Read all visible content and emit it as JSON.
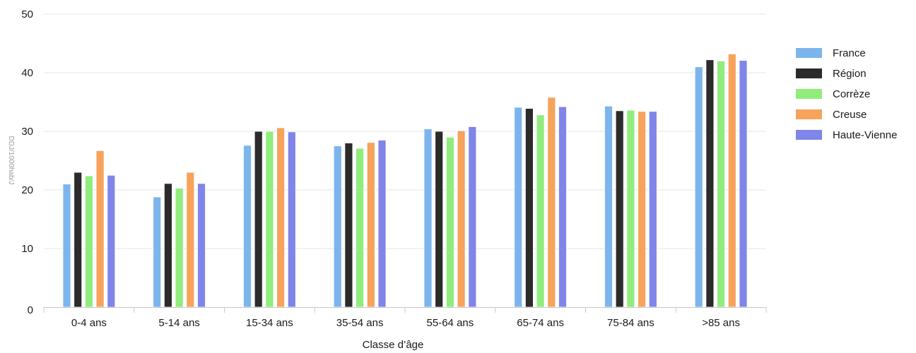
{
  "chart_data": {
    "type": "bar",
    "title": "",
    "xlabel": "Classe d’âge",
    "ylabel": "DDJ/1000hab/J",
    "ylim": [
      0,
      50
    ],
    "yticks": [
      0,
      10,
      20,
      30,
      40,
      50
    ],
    "grid": true,
    "legend_position": "right",
    "categories": [
      "0-4 ans",
      "5-14 ans",
      "15-34 ans",
      "35-54 ans",
      "55-64 ans",
      "65-74 ans",
      "75-84 ans",
      ">85 ans"
    ],
    "series": [
      {
        "name": "France",
        "color": "#7cb5ec",
        "values": [
          21.0,
          18.8,
          27.6,
          27.5,
          30.4,
          34.1,
          34.3,
          41.0
        ]
      },
      {
        "name": "Région",
        "color": "#2b2b2b",
        "values": [
          23.0,
          21.1,
          30.0,
          28.0,
          30.0,
          33.9,
          33.5,
          42.2
        ]
      },
      {
        "name": "Corrèze",
        "color": "#90ed7d",
        "values": [
          22.4,
          20.3,
          30.0,
          27.1,
          29.0,
          32.8,
          33.6,
          42.0
        ]
      },
      {
        "name": "Creuse",
        "color": "#f7a35c",
        "values": [
          26.7,
          23.0,
          30.6,
          28.1,
          30.1,
          35.8,
          33.4,
          43.2
        ]
      },
      {
        "name": "Haute-Vienne",
        "color": "#8085e9",
        "values": [
          22.5,
          21.1,
          29.9,
          28.5,
          30.8,
          34.2,
          33.4,
          42.1
        ]
      }
    ]
  }
}
